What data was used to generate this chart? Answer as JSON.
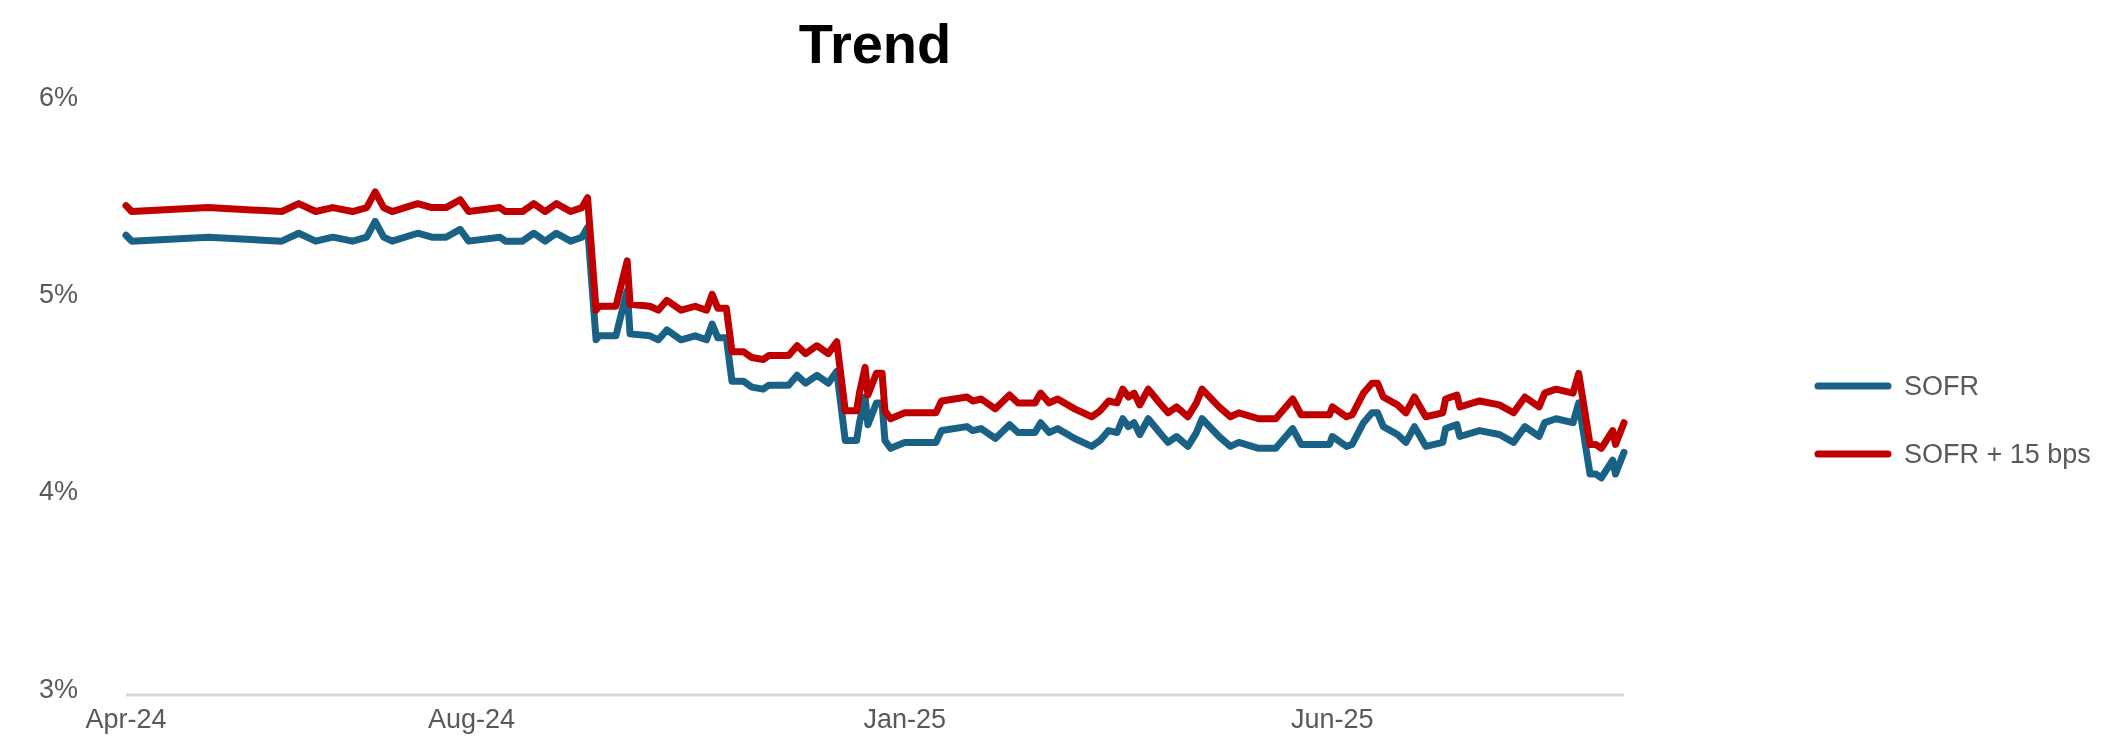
{
  "chart_data": {
    "type": "line",
    "title": "Trend",
    "x": [
      "2024-04-01",
      "2024-04-03",
      "2024-04-30",
      "2024-05-26",
      "2024-06-01",
      "2024-06-07",
      "2024-06-13",
      "2024-06-20",
      "2024-06-25",
      "2024-06-28",
      "2024-07-01",
      "2024-07-04",
      "2024-07-13",
      "2024-07-18",
      "2024-07-23",
      "2024-07-28",
      "2024-07-31",
      "2024-08-11",
      "2024-08-13",
      "2024-08-19",
      "2024-08-23",
      "2024-08-27",
      "2024-08-31",
      "2024-09-05",
      "2024-09-09",
      "2024-09-11",
      "2024-09-14",
      "2024-09-15",
      "2024-09-21",
      "2024-09-25",
      "2024-09-26",
      "2024-10-03",
      "2024-10-06",
      "2024-10-09",
      "2024-10-14",
      "2024-10-19",
      "2024-10-23",
      "2024-10-25",
      "2024-10-27",
      "2024-10-30",
      "2024-11-01",
      "2024-11-05",
      "2024-11-08",
      "2024-11-12",
      "2024-11-14",
      "2024-11-21",
      "2024-11-24",
      "2024-11-27",
      "2024-12-01",
      "2024-12-05",
      "2024-12-08",
      "2024-12-11",
      "2024-12-15",
      "2024-12-16",
      "2024-12-18",
      "2024-12-19",
      "2024-12-22",
      "2024-12-24",
      "2024-12-25",
      "2024-12-27",
      "2025-01-01",
      "2025-01-12",
      "2025-01-14",
      "2025-01-23",
      "2025-01-25",
      "2025-01-28",
      "2025-02-02",
      "2025-02-07",
      "2025-02-10",
      "2025-02-16",
      "2025-02-18",
      "2025-02-21",
      "2025-02-24",
      "2025-03-02",
      "2025-03-08",
      "2025-03-11",
      "2025-03-14",
      "2025-03-17",
      "2025-03-19",
      "2025-03-21",
      "2025-03-23",
      "2025-03-25",
      "2025-03-28",
      "2025-04-01",
      "2025-04-04",
      "2025-04-07",
      "2025-04-11",
      "2025-04-14",
      "2025-04-16",
      "2025-04-22",
      "2025-04-26",
      "2025-04-29",
      "2025-05-06",
      "2025-05-12",
      "2025-05-18",
      "2025-05-21",
      "2025-05-31",
      "2025-06-01",
      "2025-06-06",
      "2025-06-08",
      "2025-06-12",
      "2025-06-15",
      "2025-06-17",
      "2025-06-19",
      "2025-06-24",
      "2025-06-27",
      "2025-06-30",
      "2025-07-04",
      "2025-07-10",
      "2025-07-11",
      "2025-07-15",
      "2025-07-16",
      "2025-07-23",
      "2025-07-30",
      "2025-08-04",
      "2025-08-08",
      "2025-08-13",
      "2025-08-15",
      "2025-08-19",
      "2025-08-25",
      "2025-08-27",
      "2025-08-31",
      "2025-09-02",
      "2025-09-04",
      "2025-09-08",
      "2025-09-09",
      "2025-09-12"
    ],
    "series": [
      {
        "name": "SOFR",
        "color": "#1a6285",
        "values": [
          5.33,
          5.3,
          5.32,
          5.3,
          5.34,
          5.3,
          5.32,
          5.3,
          5.32,
          5.4,
          5.32,
          5.3,
          5.34,
          5.32,
          5.32,
          5.36,
          5.3,
          5.32,
          5.3,
          5.3,
          5.34,
          5.3,
          5.34,
          5.3,
          5.32,
          5.37,
          4.8,
          4.82,
          4.82,
          5.05,
          4.83,
          4.82,
          4.8,
          4.85,
          4.8,
          4.82,
          4.8,
          4.88,
          4.81,
          4.81,
          4.59,
          4.59,
          4.56,
          4.55,
          4.57,
          4.57,
          4.62,
          4.58,
          4.62,
          4.58,
          4.64,
          4.29,
          4.29,
          4.38,
          4.51,
          4.37,
          4.48,
          4.48,
          4.29,
          4.25,
          4.28,
          4.28,
          4.34,
          4.36,
          4.34,
          4.35,
          4.3,
          4.37,
          4.33,
          4.33,
          4.38,
          4.33,
          4.35,
          4.3,
          4.26,
          4.29,
          4.34,
          4.33,
          4.4,
          4.36,
          4.38,
          4.32,
          4.4,
          4.33,
          4.28,
          4.31,
          4.26,
          4.33,
          4.4,
          4.31,
          4.26,
          4.28,
          4.25,
          4.25,
          4.35,
          4.27,
          4.27,
          4.31,
          4.26,
          4.27,
          4.38,
          4.43,
          4.43,
          4.36,
          4.32,
          4.28,
          4.36,
          4.26,
          4.28,
          4.35,
          4.37,
          4.31,
          4.34,
          4.32,
          4.28,
          4.36,
          4.31,
          4.38,
          4.4,
          4.38,
          4.48,
          4.12,
          4.12,
          4.1,
          4.19,
          4.12,
          4.23
        ]
      },
      {
        "name": "SOFR + 15 bps",
        "color": "#c00000",
        "values": [
          5.48,
          5.45,
          5.47,
          5.45,
          5.49,
          5.45,
          5.47,
          5.45,
          5.47,
          5.55,
          5.47,
          5.45,
          5.49,
          5.47,
          5.47,
          5.51,
          5.45,
          5.47,
          5.45,
          5.45,
          5.49,
          5.45,
          5.49,
          5.45,
          5.47,
          5.52,
          4.95,
          4.97,
          4.97,
          5.2,
          4.98,
          4.97,
          4.95,
          5.0,
          4.95,
          4.97,
          4.95,
          5.03,
          4.96,
          4.96,
          4.74,
          4.74,
          4.71,
          4.7,
          4.72,
          4.72,
          4.77,
          4.73,
          4.77,
          4.73,
          4.79,
          4.44,
          4.44,
          4.53,
          4.66,
          4.52,
          4.63,
          4.63,
          4.44,
          4.4,
          4.43,
          4.43,
          4.49,
          4.51,
          4.49,
          4.5,
          4.45,
          4.52,
          4.48,
          4.48,
          4.53,
          4.48,
          4.5,
          4.45,
          4.41,
          4.44,
          4.49,
          4.48,
          4.55,
          4.51,
          4.53,
          4.47,
          4.55,
          4.48,
          4.43,
          4.46,
          4.41,
          4.48,
          4.55,
          4.46,
          4.41,
          4.43,
          4.4,
          4.4,
          4.5,
          4.42,
          4.42,
          4.46,
          4.41,
          4.42,
          4.53,
          4.58,
          4.58,
          4.51,
          4.47,
          4.43,
          4.51,
          4.41,
          4.43,
          4.5,
          4.52,
          4.46,
          4.49,
          4.47,
          4.43,
          4.51,
          4.46,
          4.53,
          4.55,
          4.53,
          4.63,
          4.27,
          4.27,
          4.25,
          4.34,
          4.27,
          4.38
        ]
      }
    ],
    "xlim": [
      "2024-04-01",
      "2025-09-12"
    ],
    "xticks": [
      {
        "value": "2024-04-01",
        "label": "Apr-24"
      },
      {
        "value": "2024-08-01",
        "label": "Aug-24"
      },
      {
        "value": "2025-01-01",
        "label": "Jan-25"
      },
      {
        "value": "2025-06-01",
        "label": "Jun-25"
      }
    ],
    "ylim": [
      3,
      6
    ],
    "yticks": [
      {
        "value": 3,
        "label": "3%"
      },
      {
        "value": 4,
        "label": "4%"
      },
      {
        "value": 5,
        "label": "5%"
      },
      {
        "value": 6,
        "label": "6%"
      }
    ],
    "legend": "right",
    "marker": "none",
    "line_style": "solid"
  }
}
